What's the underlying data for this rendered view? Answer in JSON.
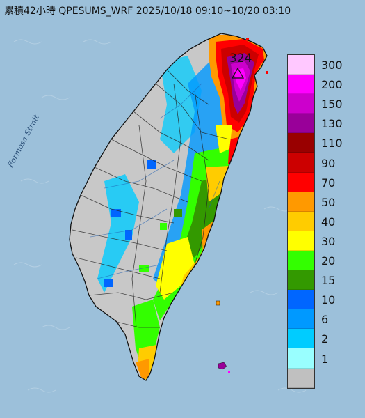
{
  "map": {
    "title": "累積42小時 QPESUMS_WRF 2025/10/18 09:10~10/20 03:10",
    "sea_label": "Formosa Strait",
    "max_value": "324",
    "colors": {
      "sea": "#9cc0da",
      "land_no_rain": "#c8c8c8",
      "outline": "#111111"
    },
    "legend": {
      "items": [
        {
          "label": "300",
          "color": "#ffc8ff"
        },
        {
          "label": "200",
          "color": "#ff00ff"
        },
        {
          "label": "150",
          "color": "#cc00cc"
        },
        {
          "label": "130",
          "color": "#990099"
        },
        {
          "label": "110",
          "color": "#990000"
        },
        {
          "label": "90",
          "color": "#cc0000"
        },
        {
          "label": "70",
          "color": "#ff0000"
        },
        {
          "label": "50",
          "color": "#ff9900"
        },
        {
          "label": "40",
          "color": "#ffcc00"
        },
        {
          "label": "30",
          "color": "#ffff00"
        },
        {
          "label": "20",
          "color": "#33ff00"
        },
        {
          "label": "15",
          "color": "#339900"
        },
        {
          "label": "10",
          "color": "#0066ff"
        },
        {
          "label": "6",
          "color": "#0099ff"
        },
        {
          "label": "2",
          "color": "#00ccff"
        },
        {
          "label": "1",
          "color": "#99ffff"
        },
        {
          "label": "",
          "color": "#c0c0c0"
        }
      ]
    }
  }
}
